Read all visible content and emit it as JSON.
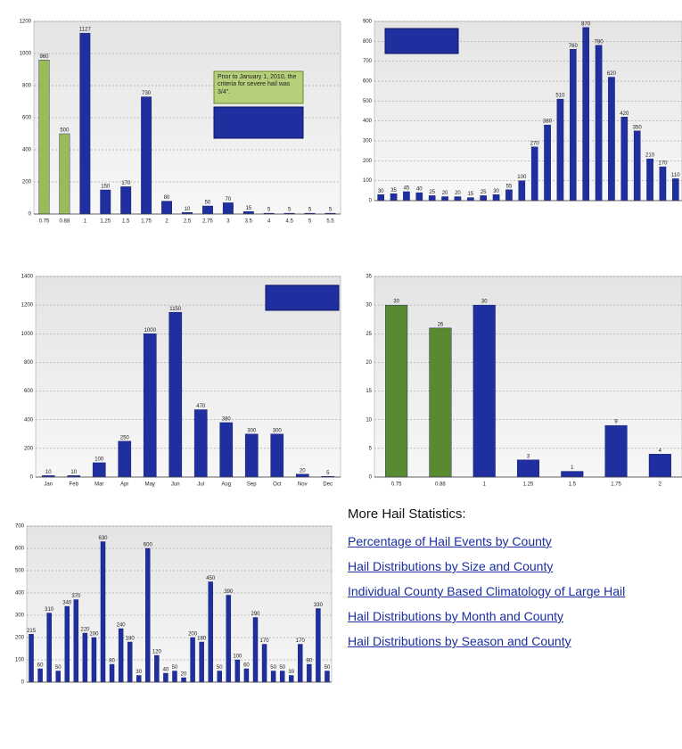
{
  "chart_data": [
    {
      "type": "bar",
      "annotation": "Prior to January 1, 2010, the criteria for severe hail was 3/4\".",
      "categories": [
        "0.75",
        "0.88",
        "1",
        "1.25",
        "1.5",
        "1.75",
        "2",
        "2.5",
        "2.75",
        "3",
        "3.5",
        "4",
        "4.5",
        "5",
        "5.5"
      ],
      "values": [
        960,
        500,
        1127,
        150,
        170,
        730,
        80,
        10,
        50,
        70,
        15,
        5,
        5,
        5,
        5
      ],
      "colors": [
        "#9bbb59",
        "#9bbb59",
        "#1f2f9f",
        "#1f2f9f",
        "#1f2f9f",
        "#1f2f9f",
        "#1f2f9f",
        "#1f2f9f",
        "#1f2f9f",
        "#1f2f9f",
        "#1f2f9f",
        "#1f2f9f",
        "#1f2f9f",
        "#1f2f9f",
        "#1f2f9f"
      ],
      "ylim": [
        0,
        1200
      ],
      "yticks": [
        0,
        200,
        400,
        600,
        800,
        1000,
        1200
      ],
      "grid": true
    },
    {
      "type": "bar",
      "categories": [
        null,
        null,
        null,
        null,
        null,
        null,
        null,
        null,
        null,
        null,
        null,
        null,
        null,
        null,
        null,
        null,
        null,
        null,
        null,
        null,
        null,
        null,
        null,
        null
      ],
      "values": [
        30,
        35,
        45,
        40,
        25,
        20,
        20,
        15,
        25,
        30,
        55,
        100,
        270,
        380,
        510,
        760,
        870,
        780,
        620,
        420,
        350,
        210,
        170,
        110
      ],
      "color": "#1f2f9f",
      "ylim": [
        0,
        900
      ],
      "yticks": [
        0,
        100,
        200,
        300,
        400,
        500,
        600,
        700,
        800,
        900
      ],
      "grid": true
    },
    {
      "type": "bar",
      "categories": [
        "Jan",
        "Feb",
        "Mar",
        "Apr",
        "May",
        "Jun",
        "Jul",
        "Aug",
        "Sep",
        "Oct",
        "Nov",
        "Dec"
      ],
      "values": [
        10,
        10,
        100,
        250,
        1000,
        1150,
        470,
        380,
        300,
        300,
        20,
        5
      ],
      "color": "#1f2f9f",
      "ylim": [
        0,
        1400
      ],
      "yticks": [
        0,
        200,
        400,
        600,
        800,
        1000,
        1200,
        1400
      ],
      "grid": true
    },
    {
      "type": "bar",
      "categories": [
        "0.75",
        "0.88",
        "1",
        "1.25",
        "1.5",
        "1.75",
        "2"
      ],
      "values": [
        30,
        26,
        30,
        3,
        1,
        9,
        4
      ],
      "colors": [
        "#5a8a30",
        "#5a8a30",
        "#1f2f9f",
        "#1f2f9f",
        "#1f2f9f",
        "#1f2f9f",
        "#1f2f9f"
      ],
      "ylim": [
        0,
        35
      ],
      "yticks": [
        0,
        5,
        10,
        15,
        20,
        25,
        30,
        35
      ],
      "grid": true
    },
    {
      "type": "bar",
      "categories": [
        null,
        null,
        null,
        null,
        null,
        null,
        null,
        null,
        null,
        null,
        null,
        null,
        null,
        null,
        null,
        null,
        null,
        null,
        null,
        null,
        null,
        null,
        null,
        null,
        null,
        null,
        null,
        null,
        null,
        null,
        null,
        null,
        null,
        null
      ],
      "values": [
        215,
        60,
        310,
        50,
        340,
        370,
        220,
        200,
        630,
        80,
        240,
        180,
        30,
        600,
        120,
        40,
        50,
        20,
        200,
        180,
        450,
        50,
        390,
        100,
        60,
        290,
        170,
        50,
        50,
        30,
        170,
        80,
        330,
        50
      ],
      "color": "#1f2f9f",
      "ylim": [
        0,
        700
      ],
      "yticks": [
        0,
        100,
        200,
        300,
        400,
        500,
        600,
        700
      ],
      "grid": true
    }
  ],
  "links": {
    "heading": "More Hail Statistics:",
    "items": [
      "Percentage of Hail Events by County",
      "Hail Distributions by Size and County",
      "Individual County Based Climatology of Large Hail",
      "Hail Distributions by Month and County",
      "Hail Distributions by Season and County"
    ]
  }
}
